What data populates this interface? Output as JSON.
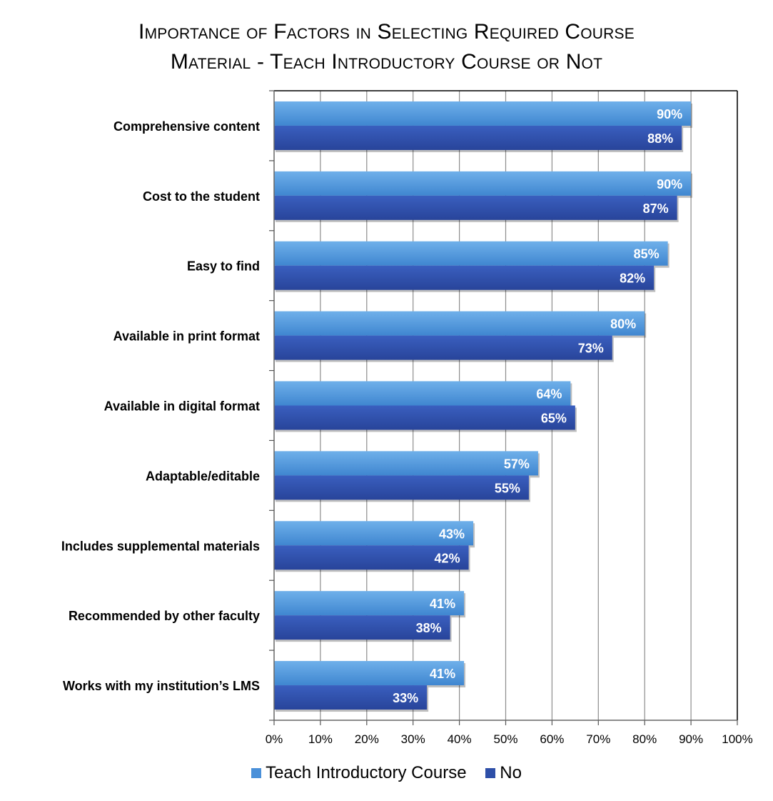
{
  "chart_data": {
    "type": "bar",
    "orientation": "horizontal",
    "title_lines": [
      "Importance of Factors in Selecting Required Course",
      "Material - Teach Introductory Course or Not"
    ],
    "categories": [
      "Comprehensive content",
      "Cost to the student",
      "Easy to find",
      "Available in print format",
      "Available in digital format",
      "Adaptable/editable",
      "Includes supplemental materials",
      "Recommended by other faculty",
      "Works with my institution’s LMS"
    ],
    "series": [
      {
        "name": "Teach Introductory Course",
        "color": "#4a90d9",
        "values": [
          90,
          90,
          85,
          80,
          64,
          57,
          43,
          41,
          41
        ],
        "labels": [
          "90%",
          "90%",
          "85%",
          "80%",
          "64%",
          "57%",
          "43%",
          "41%",
          "41%"
        ]
      },
      {
        "name": "No",
        "color": "#2e4fa8",
        "values": [
          88,
          87,
          82,
          73,
          65,
          55,
          42,
          38,
          33
        ],
        "labels": [
          "88%",
          "87%",
          "82%",
          "73%",
          "65%",
          "55%",
          "42%",
          "38%",
          "33%"
        ]
      }
    ],
    "xlim": [
      0,
      100
    ],
    "xticks": [
      0,
      10,
      20,
      30,
      40,
      50,
      60,
      70,
      80,
      90,
      100
    ],
    "xtick_labels": [
      "0%",
      "10%",
      "20%",
      "30%",
      "40%",
      "50%",
      "60%",
      "70%",
      "80%",
      "90%",
      "100%"
    ],
    "grid": true,
    "legend_position": "bottom"
  }
}
